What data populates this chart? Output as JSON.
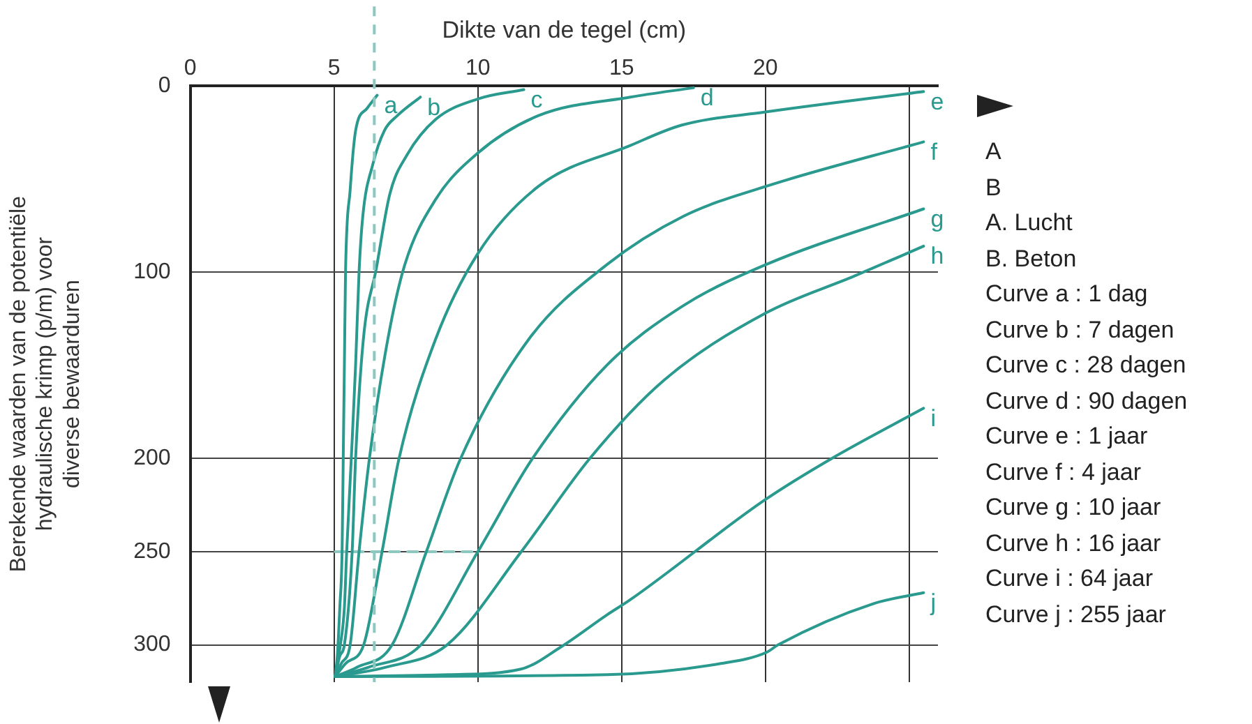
{
  "chart_data": {
    "type": "line",
    "xlabel": "Dikte van de tegel (cm)",
    "ylabel": "Berekende waarden van de potentiële\nhydraulische krimp (p/m) voor\ndiverse bewaarduren",
    "xlim": [
      0,
      26
    ],
    "xticks": [
      0,
      5,
      10,
      15,
      20,
      {
        "value": 25,
        "label": null
      }
    ],
    "ylim": [
      320,
      0
    ],
    "yticks": [
      0,
      100,
      200,
      250,
      300
    ],
    "grid": true,
    "legend": false,
    "marker": "none",
    "line_style": "solid",
    "series": [
      {
        "name": "a",
        "color": "#2a9a8f",
        "x": [
          5.04,
          5.12,
          5.2,
          5.28,
          5.32,
          5.36,
          5.4,
          5.56,
          5.75,
          6.15,
          6.5
        ],
        "values": [
          317,
          305,
          280,
          250,
          200,
          150,
          100,
          56,
          24,
          12,
          5
        ]
      },
      {
        "name": "b",
        "color": "#2a9a8f",
        "x": [
          5.04,
          5.2,
          5.36,
          5.44,
          5.6,
          5.75,
          5.87,
          6.0,
          6.35,
          6.75,
          7.2,
          8.0
        ],
        "values": [
          317,
          302,
          280,
          250,
          200,
          150,
          100,
          70,
          42,
          24,
          16,
          6
        ]
      },
      {
        "name": "c",
        "color": "#2a9a8f",
        "x": [
          5.04,
          5.2,
          5.36,
          5.63,
          5.75,
          6.02,
          6.47,
          6.94,
          7.54,
          8.53,
          10,
          11.6
        ],
        "values": [
          317,
          306,
          300,
          250,
          200,
          136,
          98,
          58,
          37,
          18,
          7,
          2
        ]
      },
      {
        "name": "d",
        "color": "#2a9a8f",
        "x": [
          5.04,
          5.25,
          5.56,
          5.87,
          6.23,
          6.87,
          7.46,
          8.53,
          10,
          12.1,
          15.3,
          17.5
        ],
        "values": [
          317,
          310,
          300,
          250,
          200,
          136,
          96,
          61,
          36,
          16,
          6,
          1
        ]
      },
      {
        "name": "e",
        "color": "#2a9a8f",
        "x": [
          5.04,
          5.4,
          6.03,
          6.67,
          7.26,
          8.53,
          10,
          12.1,
          15.3,
          17.1,
          20,
          25.5
        ],
        "values": [
          317,
          310,
          300,
          250,
          200,
          136,
          90,
          54,
          32,
          21,
          14,
          3
        ]
      },
      {
        "name": "f",
        "color": "#2a9a8f",
        "x": [
          5.04,
          5.8,
          7.02,
          8.21,
          9.4,
          11.77,
          14.48,
          17.14,
          20,
          25.5
        ],
        "values": [
          317,
          312,
          300,
          250,
          200,
          136,
          96,
          70,
          54,
          30
        ]
      },
      {
        "name": "g",
        "color": "#2a9a8f",
        "x": [
          5.04,
          6.2,
          8.02,
          10,
          11.9,
          14.48,
          17.14,
          20,
          25.5
        ],
        "values": [
          317,
          312,
          300,
          250,
          200,
          150,
          118,
          96,
          66
        ]
      },
      {
        "name": "h",
        "color": "#2a9a8f",
        "x": [
          5.04,
          6.8,
          8.93,
          11.51,
          13.89,
          16.47,
          20,
          23.1,
          25.5
        ],
        "values": [
          317,
          312,
          300,
          250,
          200,
          158,
          122,
          102,
          86
        ]
      },
      {
        "name": "i",
        "color": "#2a9a8f",
        "x": [
          5.04,
          9,
          11.5,
          12.9,
          14.48,
          15.28,
          20,
          22.3,
          25.5
        ],
        "values": [
          317,
          316,
          313,
          301,
          284,
          276,
          222,
          200,
          173
        ]
      },
      {
        "name": "j",
        "color": "#2a9a8f",
        "x": [
          5.04,
          14.5,
          18.45,
          20.04,
          20.44,
          23.73,
          25.5
        ],
        "values": [
          317,
          316,
          310,
          304,
          300,
          278,
          272
        ]
      },
      {
        "color": "#8cc8c0",
        "line_style": "dashed",
        "x": [
          5.04,
          10
        ],
        "values": [
          250,
          250
        ]
      }
    ],
    "ref_lines": [
      {
        "axis": "x",
        "value": 6.4,
        "color": "#8cc8c0",
        "line_style": "dashed"
      }
    ],
    "annotations": [
      "A",
      "B",
      "A.  Lucht",
      "B.  Beton",
      "Curve a : 1 dag",
      "Curve b : 7 dagen",
      "Curve c : 28 dagen",
      "Curve d : 90 dagen",
      "Curve e : 1 jaar",
      "Curve f : 4 jaar",
      "Curve g : 10 jaar",
      "Curve h : 16 jaar",
      "Curve i : 64 jaar",
      "Curve j : 255 jaar"
    ]
  }
}
